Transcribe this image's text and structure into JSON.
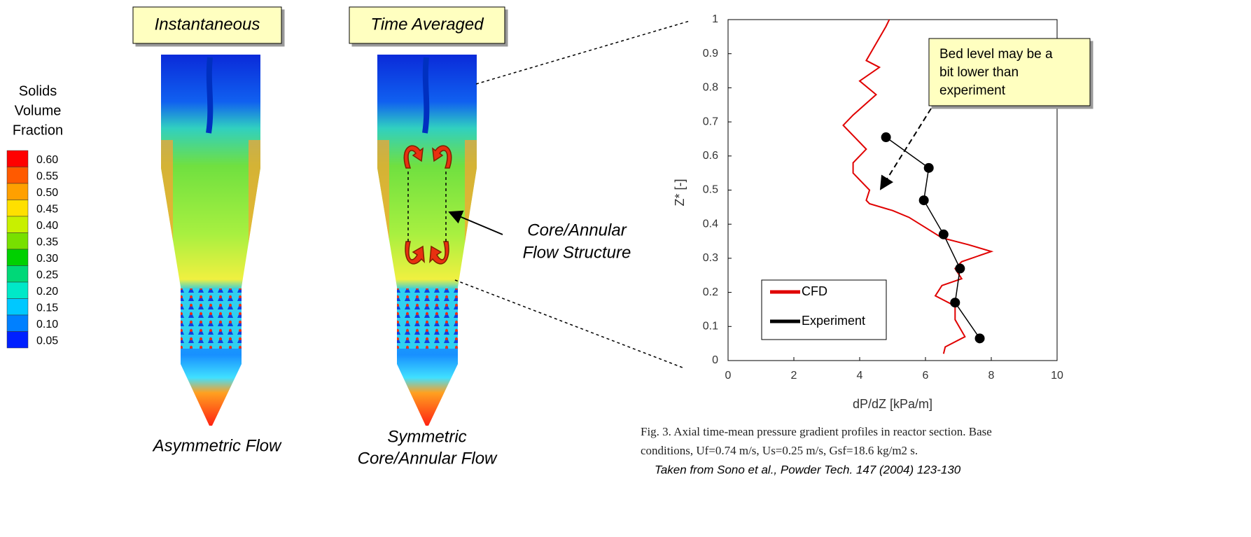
{
  "colorbar": {
    "title": [
      "Solids",
      "Volume",
      "Fraction"
    ],
    "labels": [
      "0.60",
      "0.55",
      "0.50",
      "0.45",
      "0.40",
      "0.35",
      "0.30",
      "0.25",
      "0.20",
      "0.15",
      "0.10",
      "0.05"
    ],
    "colors": [
      "#ff0000",
      "#ff5a00",
      "#ffa000",
      "#ffe000",
      "#c8f000",
      "#78e000",
      "#00d000",
      "#00d878",
      "#00e8c8",
      "#00c8ff",
      "#0080ff",
      "#0020ff"
    ]
  },
  "panels": [
    {
      "title": "Instantaneous",
      "caption": [
        "Asymmetric Flow"
      ]
    },
    {
      "title": "Time Averaged",
      "caption": [
        "Symmetric",
        "Core/Annular Flow"
      ]
    }
  ],
  "annotation": [
    "Core/Annular",
    "Flow Structure"
  ],
  "chart_data": {
    "type": "line",
    "xlabel": "dP/dZ [kPa/m]",
    "ylabel": "Z* [-]",
    "xlim": [
      0,
      10
    ],
    "xticks": [
      0,
      2,
      4,
      6,
      8,
      10
    ],
    "ylim": [
      0,
      1
    ],
    "yticks": [
      0,
      0.1,
      0.2,
      0.3,
      0.4,
      0.5,
      0.6,
      0.7,
      0.8,
      0.9,
      1
    ],
    "series": [
      {
        "name": "CFD",
        "color": "#e00000",
        "marker": false,
        "x": [
          6.55,
          6.6,
          7.2,
          6.9,
          6.9,
          6.3,
          6.5,
          7.1,
          6.9,
          7.1,
          8.0,
          7.3,
          6.5,
          6.0,
          5.5,
          5.0,
          4.3,
          4.2,
          4.3,
          4.0,
          3.8,
          3.8,
          4.2,
          3.8,
          3.5,
          3.8,
          4.5,
          4.0,
          4.6,
          4.2,
          4.5,
          4.8,
          4.9
        ],
        "values": [
          0.02,
          0.04,
          0.07,
          0.12,
          0.16,
          0.19,
          0.22,
          0.24,
          0.27,
          0.29,
          0.32,
          0.34,
          0.36,
          0.39,
          0.42,
          0.44,
          0.46,
          0.47,
          0.5,
          0.53,
          0.55,
          0.58,
          0.62,
          0.66,
          0.69,
          0.72,
          0.78,
          0.82,
          0.86,
          0.88,
          0.93,
          0.98,
          1.0
        ]
      },
      {
        "name": "Experiment",
        "color": "#000000",
        "marker": true,
        "x": [
          7.65,
          6.9,
          7.05,
          6.55,
          5.95,
          6.1,
          4.8
        ],
        "values": [
          0.065,
          0.17,
          0.27,
          0.37,
          0.47,
          0.565,
          0.655
        ]
      }
    ],
    "note": [
      "Bed level may be a",
      "bit lower than",
      "experiment"
    ]
  },
  "caption": [
    "Fig. 3. Axial time-mean pressure gradient profiles in reactor section. Base",
    "conditions, Uf=0.74 m/s, Us=0.25 m/s, Gsf=18.6 kg/m2 s."
  ],
  "source": "Taken from Sono et al., Powder Tech. 147 (2004) 123-130"
}
